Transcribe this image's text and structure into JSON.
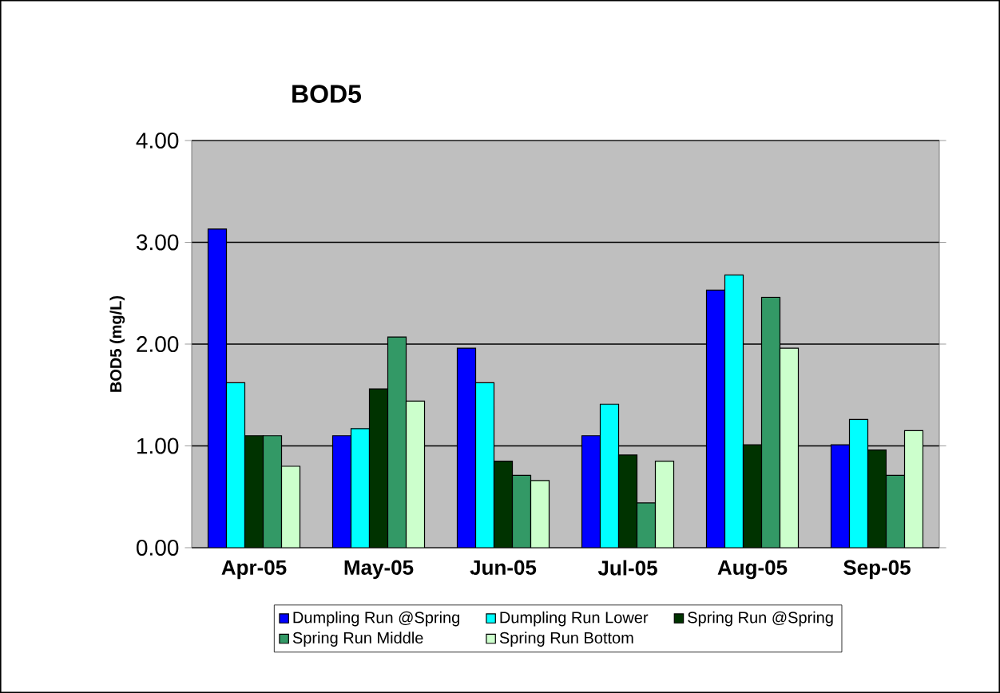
{
  "chart_data": {
    "type": "bar",
    "title": "BOD5",
    "ylabel": "BOD5 (mg/L)",
    "categories": [
      "Apr-05",
      "May-05",
      "Jun-05",
      "Jul-05",
      "Aug-05",
      "Sep-05"
    ],
    "series": [
      {
        "name": "Dumpling Run @Spring",
        "color": "#0000ff",
        "values": [
          3.13,
          1.1,
          1.96,
          1.1,
          2.53,
          1.01
        ]
      },
      {
        "name": "Dumpling Run Lower",
        "color": "#00ffff",
        "values": [
          1.62,
          1.17,
          1.62,
          1.41,
          2.68,
          1.26
        ]
      },
      {
        "name": "Spring Run @Spring",
        "color": "#003300",
        "values": [
          1.1,
          1.56,
          0.85,
          0.91,
          1.01,
          0.96
        ]
      },
      {
        "name": "Spring Run Middle",
        "color": "#339966",
        "values": [
          1.1,
          2.07,
          0.71,
          0.44,
          2.46,
          0.71
        ]
      },
      {
        "name": "Spring Run Bottom",
        "color": "#ccffcc",
        "values": [
          0.8,
          1.44,
          0.66,
          0.85,
          1.96,
          1.15
        ]
      }
    ],
    "ylim": [
      0,
      4
    ],
    "yticks": [
      {
        "value": 0,
        "label": "0.00"
      },
      {
        "value": 1,
        "label": "1.00"
      },
      {
        "value": 2,
        "label": "2.00"
      },
      {
        "value": 3,
        "label": "3.00"
      },
      {
        "value": 4,
        "label": "4.00"
      }
    ],
    "grid": "y",
    "legend": "bottom"
  }
}
